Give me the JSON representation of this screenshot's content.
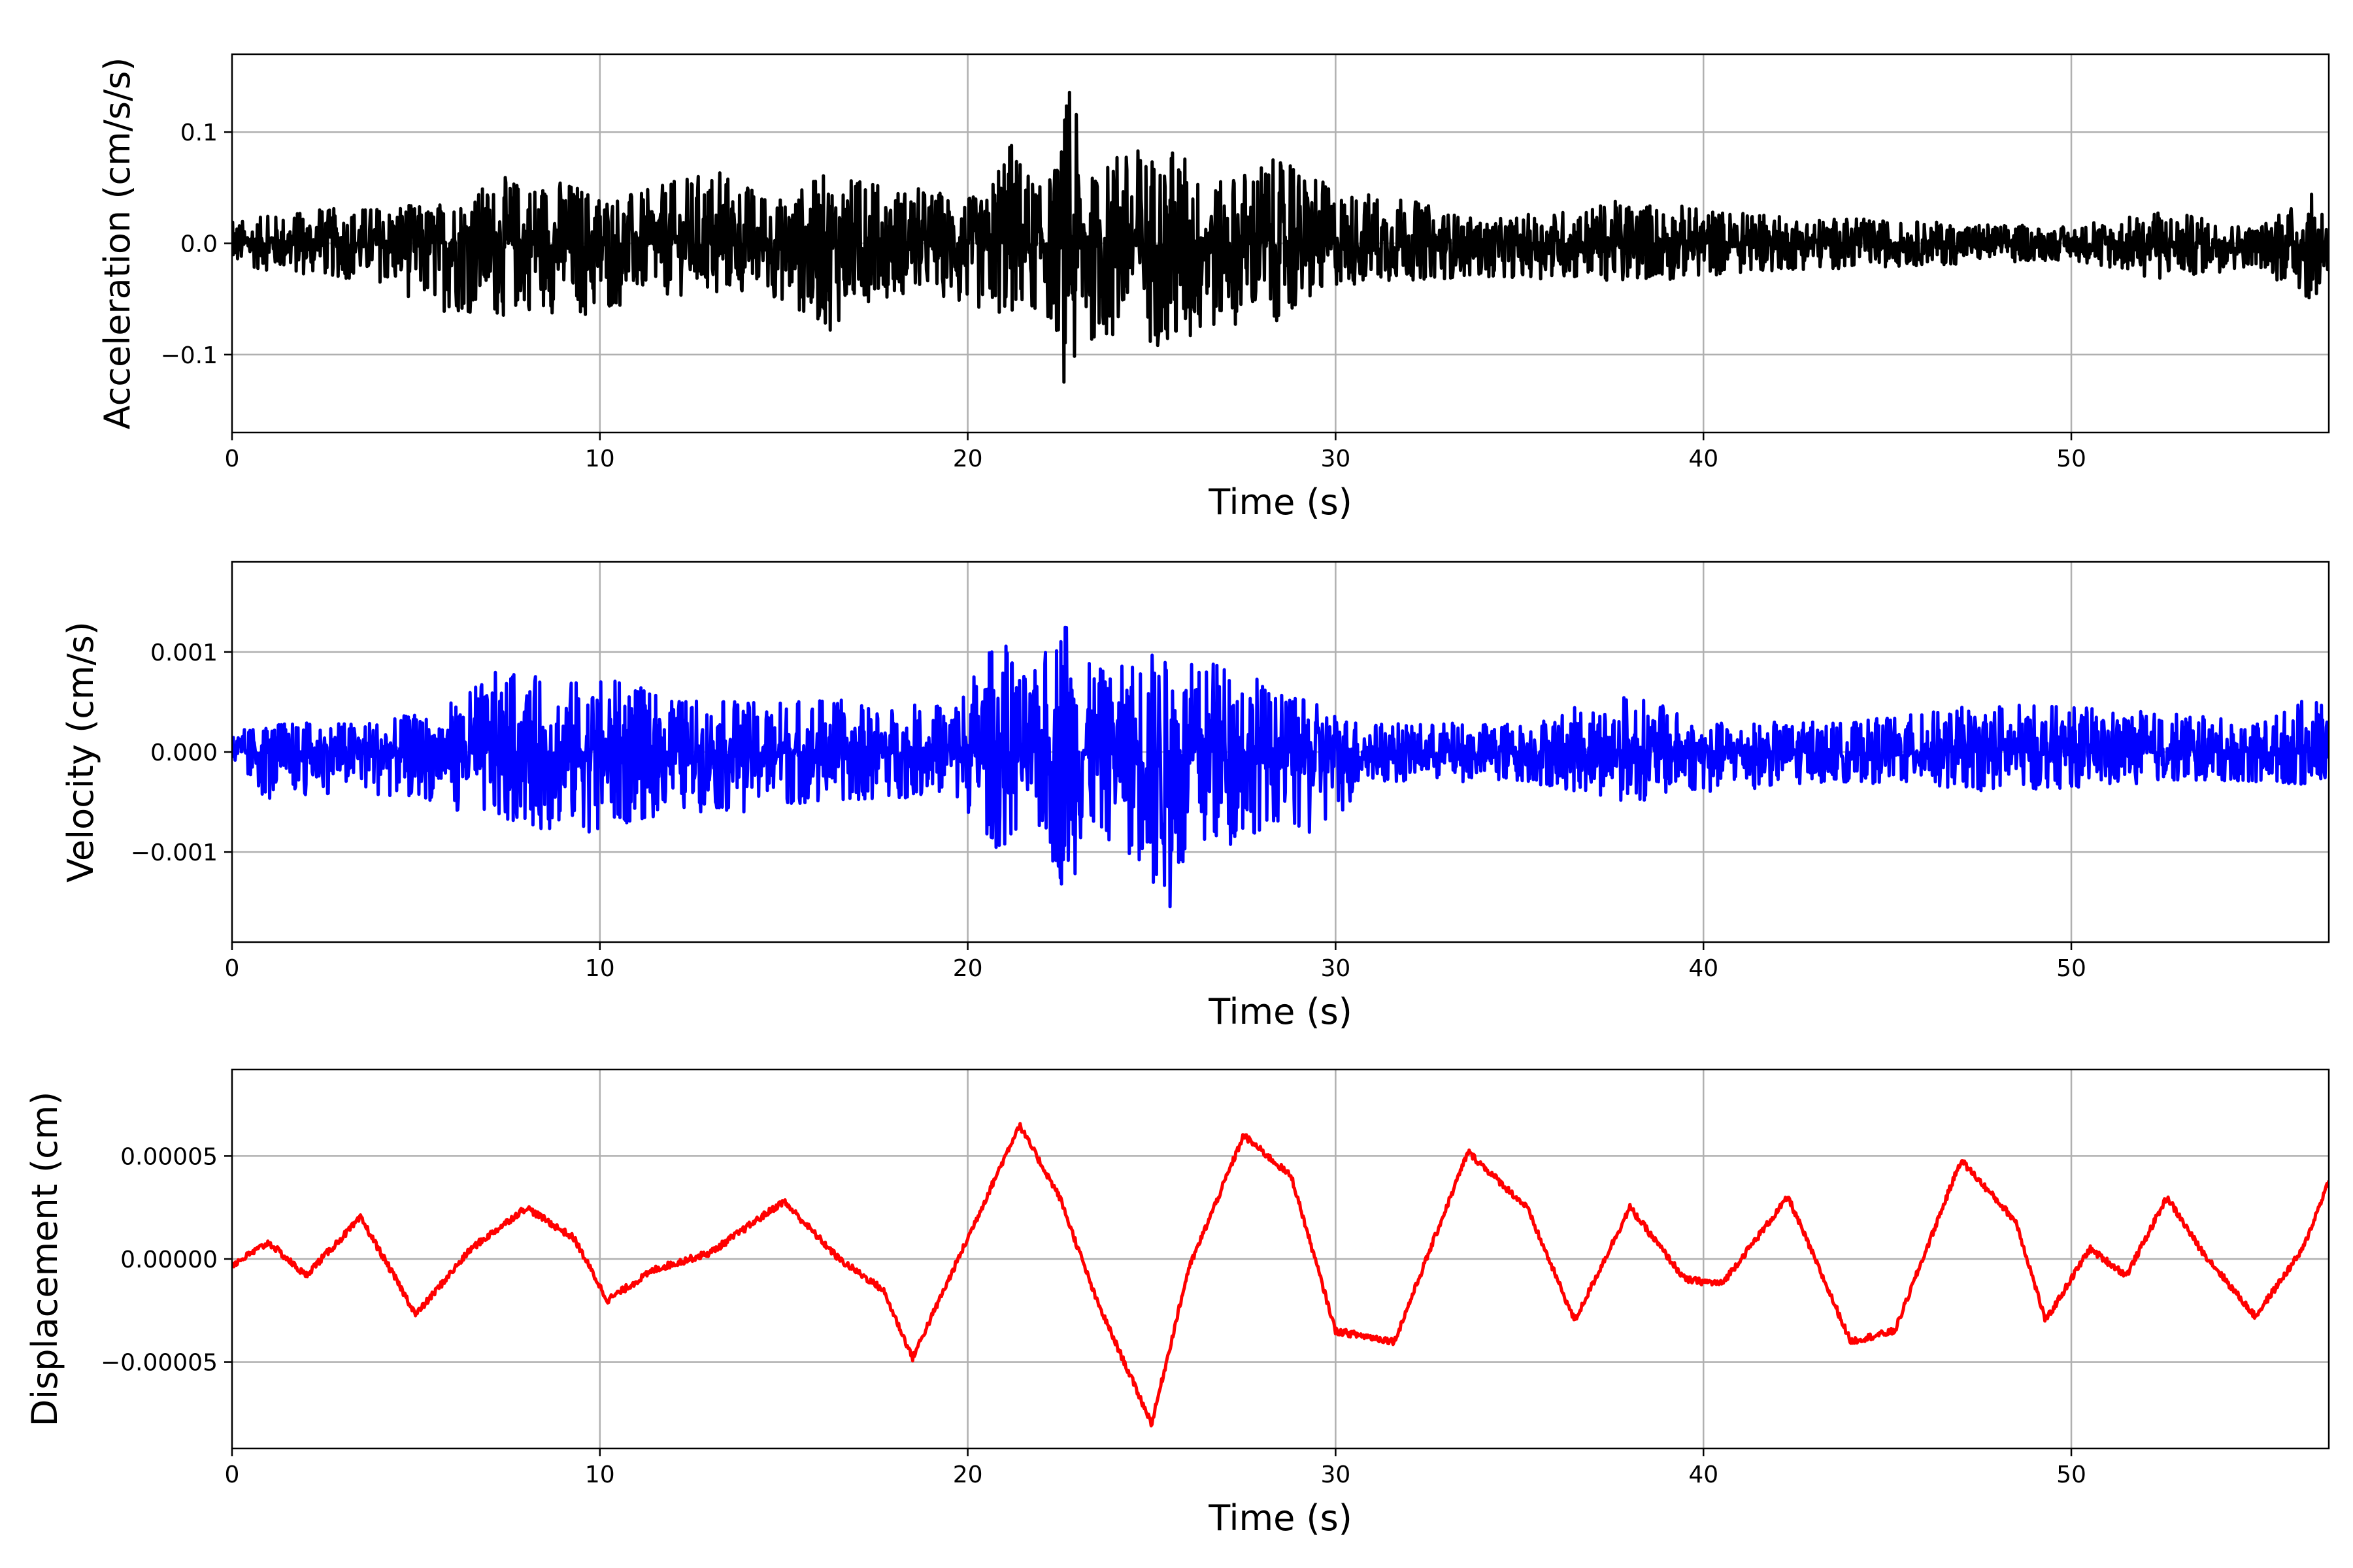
{
  "chart_data": [
    {
      "type": "line",
      "xlabel": "Time (s)",
      "ylabel": "Acceleration (cm/s/s)",
      "xlim": [
        0,
        57
      ],
      "ylim": [
        -0.17,
        0.17
      ],
      "xticks": [
        0,
        10,
        20,
        30,
        40,
        50
      ],
      "xtick_labels": [
        "0",
        "10",
        "20",
        "30",
        "40",
        "50"
      ],
      "yticks": [
        -0.1,
        0.0,
        0.1
      ],
      "ytick_labels": [
        "−0.1",
        "0.0",
        "0.1"
      ],
      "grid": true,
      "line_color": "#000000",
      "signal": "noisy broadband oscillation about zero; amplitude ~0.02-0.06 cm/s/s outside the main event, peaks near 0.14 and -0.155 around t=22.7 s, strong shaking 22-30 s",
      "series": [
        {
          "x": [
            0,
            2,
            4,
            5.4,
            7.4,
            8.2,
            9.0,
            9.9,
            11.0,
            13.2,
            14.8,
            16.2,
            17.4,
            19.0,
            20.5,
            21.0,
            22.0,
            22.5,
            22.7,
            22.8,
            23.3,
            24.0,
            24.7,
            25.3,
            25.8,
            26.3,
            27.0,
            27.9,
            28.8,
            30.0,
            31.5,
            34.0,
            38.0,
            42.0,
            46.0,
            50.0,
            52.5,
            55.0,
            56.8,
            57.0
          ],
          "peak": [
            0.02,
            0.03,
            0.035,
            0.035,
            0.06,
            0.06,
            0.06,
            0.05,
            0.045,
            0.07,
            0.04,
            0.065,
            0.055,
            0.05,
            0.04,
            0.105,
            0.05,
            0.08,
            0.142,
            0.14,
            0.06,
            0.08,
            0.09,
            0.085,
            0.09,
            0.06,
            0.055,
            0.08,
            0.07,
            0.05,
            0.045,
            0.02,
            0.04,
            0.025,
            0.02,
            0.015,
            0.03,
            0.015,
            0.05,
            0.02
          ],
          "trough": [
            -0.02,
            -0.03,
            -0.035,
            -0.06,
            -0.068,
            -0.06,
            -0.065,
            -0.07,
            -0.05,
            -0.045,
            -0.05,
            -0.08,
            -0.05,
            -0.045,
            -0.065,
            -0.07,
            -0.06,
            -0.09,
            -0.155,
            -0.145,
            -0.09,
            -0.09,
            -0.1,
            -0.09,
            -0.115,
            -0.09,
            -0.075,
            -0.07,
            -0.07,
            -0.04,
            -0.035,
            -0.03,
            -0.035,
            -0.025,
            -0.02,
            -0.015,
            -0.035,
            -0.02,
            -0.06,
            -0.02
          ]
        }
      ]
    },
    {
      "type": "line",
      "xlabel": "Time (s)",
      "ylabel": "Velocity (cm/s)",
      "xlim": [
        0,
        57
      ],
      "ylim": [
        -0.0019,
        0.0019
      ],
      "xticks": [
        0,
        10,
        20,
        30,
        40,
        50
      ],
      "xtick_labels": [
        "0",
        "10",
        "20",
        "30",
        "40",
        "50"
      ],
      "yticks": [
        -0.001,
        0.0,
        0.001
      ],
      "ytick_labels": [
        "−0.001",
        "0.000",
        "0.001"
      ],
      "grid": true,
      "line_color": "#0000ff",
      "signal": "noisy oscillation about zero; amplitude ~0.0003-0.0008 cm/s, peaks near 0.0016 and -0.0017 between 22 and 26 s",
      "series": [
        {
          "x": [
            0,
            1,
            3,
            5.5,
            7.3,
            8.8,
            10.2,
            12.0,
            14.0,
            15.8,
            17.5,
            19.5,
            20.9,
            21.7,
            22.7,
            23.2,
            24.0,
            24.8,
            25.6,
            26.3,
            27.4,
            28.3,
            29.4,
            31.0,
            35.0,
            38.0,
            40.0,
            44.0,
            48.0,
            52.5,
            55.0,
            56.8,
            57.0
          ],
          "peak": [
            0.0002,
            0.0003,
            0.0003,
            0.0004,
            0.00083,
            0.00072,
            0.00075,
            0.00055,
            0.0005,
            0.00058,
            0.00045,
            0.0005,
            0.0012,
            0.0007,
            0.0016,
            0.0009,
            0.0008,
            0.0011,
            0.0009,
            0.0009,
            0.001,
            0.0006,
            0.0005,
            0.0003,
            0.0003,
            0.0006,
            0.0003,
            0.0003,
            0.0005,
            0.0004,
            0.0003,
            0.0006,
            0.0002
          ],
          "trough": [
            -0.0002,
            -0.0005,
            -0.0004,
            -0.0005,
            -0.00075,
            -0.00078,
            -0.00082,
            -0.0006,
            -0.0006,
            -0.0005,
            -0.0005,
            -0.0004,
            -0.00103,
            -0.0007,
            -0.00148,
            -0.0009,
            -0.0009,
            -0.0012,
            -0.00173,
            -0.0011,
            -0.0009,
            -0.0007,
            -0.00093,
            -0.0003,
            -0.0003,
            -0.0005,
            -0.0004,
            -0.0003,
            -0.0004,
            -0.0003,
            -0.0003,
            -0.00035,
            -0.0002
          ]
        }
      ]
    },
    {
      "type": "line",
      "xlabel": "Time (s)",
      "ylabel": "Displacement (cm)",
      "xlim": [
        0,
        57
      ],
      "ylim": [
        -9.2e-05,
        9.2e-05
      ],
      "xticks": [
        0,
        10,
        20,
        30,
        40,
        50
      ],
      "xtick_labels": [
        "0",
        "10",
        "20",
        "30",
        "40",
        "50"
      ],
      "yticks": [
        -5e-05,
        0.0,
        5e-05
      ],
      "ytick_labels": [
        "−0.00005",
        "0.00000",
        "0.00005"
      ],
      "grid": true,
      "line_color": "#ff0000",
      "series": [
        {
          "x": [
            0,
            1,
            2,
            3.5,
            5,
            6.5,
            8,
            9.3,
            10.2,
            11.5,
            13,
            15,
            16.5,
            17.7,
            18.5,
            20.0,
            21.4,
            22.5,
            23.5,
            25.0,
            26.0,
            27.5,
            28.8,
            30.0,
            31.6,
            33.6,
            35.2,
            36.5,
            38.0,
            39.5,
            40.5,
            42.3,
            44.0,
            45.2,
            47.0,
            48.5,
            49.3,
            50.5,
            51.5,
            52.6,
            53.5,
            55.0,
            56.3,
            57.0
          ],
          "y": [
            -3e-06,
            8e-06,
            -8e-06,
            2e-05,
            -2.7e-05,
            5e-06,
            2.5e-05,
            1e-05,
            -2e-05,
            -5e-06,
            3e-06,
            2.8e-05,
            0.0,
            -1.5e-05,
            -4.8e-05,
            1e-05,
            6.5e-05,
            3e-05,
            -2e-05,
            -8e-05,
            -5e-06,
            6e-05,
            4e-05,
            -3.5e-05,
            -4e-05,
            5.2e-05,
            2.5e-05,
            -3e-05,
            2.5e-05,
            -1e-05,
            -1.2e-05,
            3e-05,
            -4e-05,
            -3.5e-05,
            4.8e-05,
            1.8e-05,
            -3e-05,
            5e-06,
            -8e-06,
            3e-05,
            5e-06,
            -2.8e-05,
            5e-06,
            3.8e-05
          ]
        }
      ]
    }
  ]
}
